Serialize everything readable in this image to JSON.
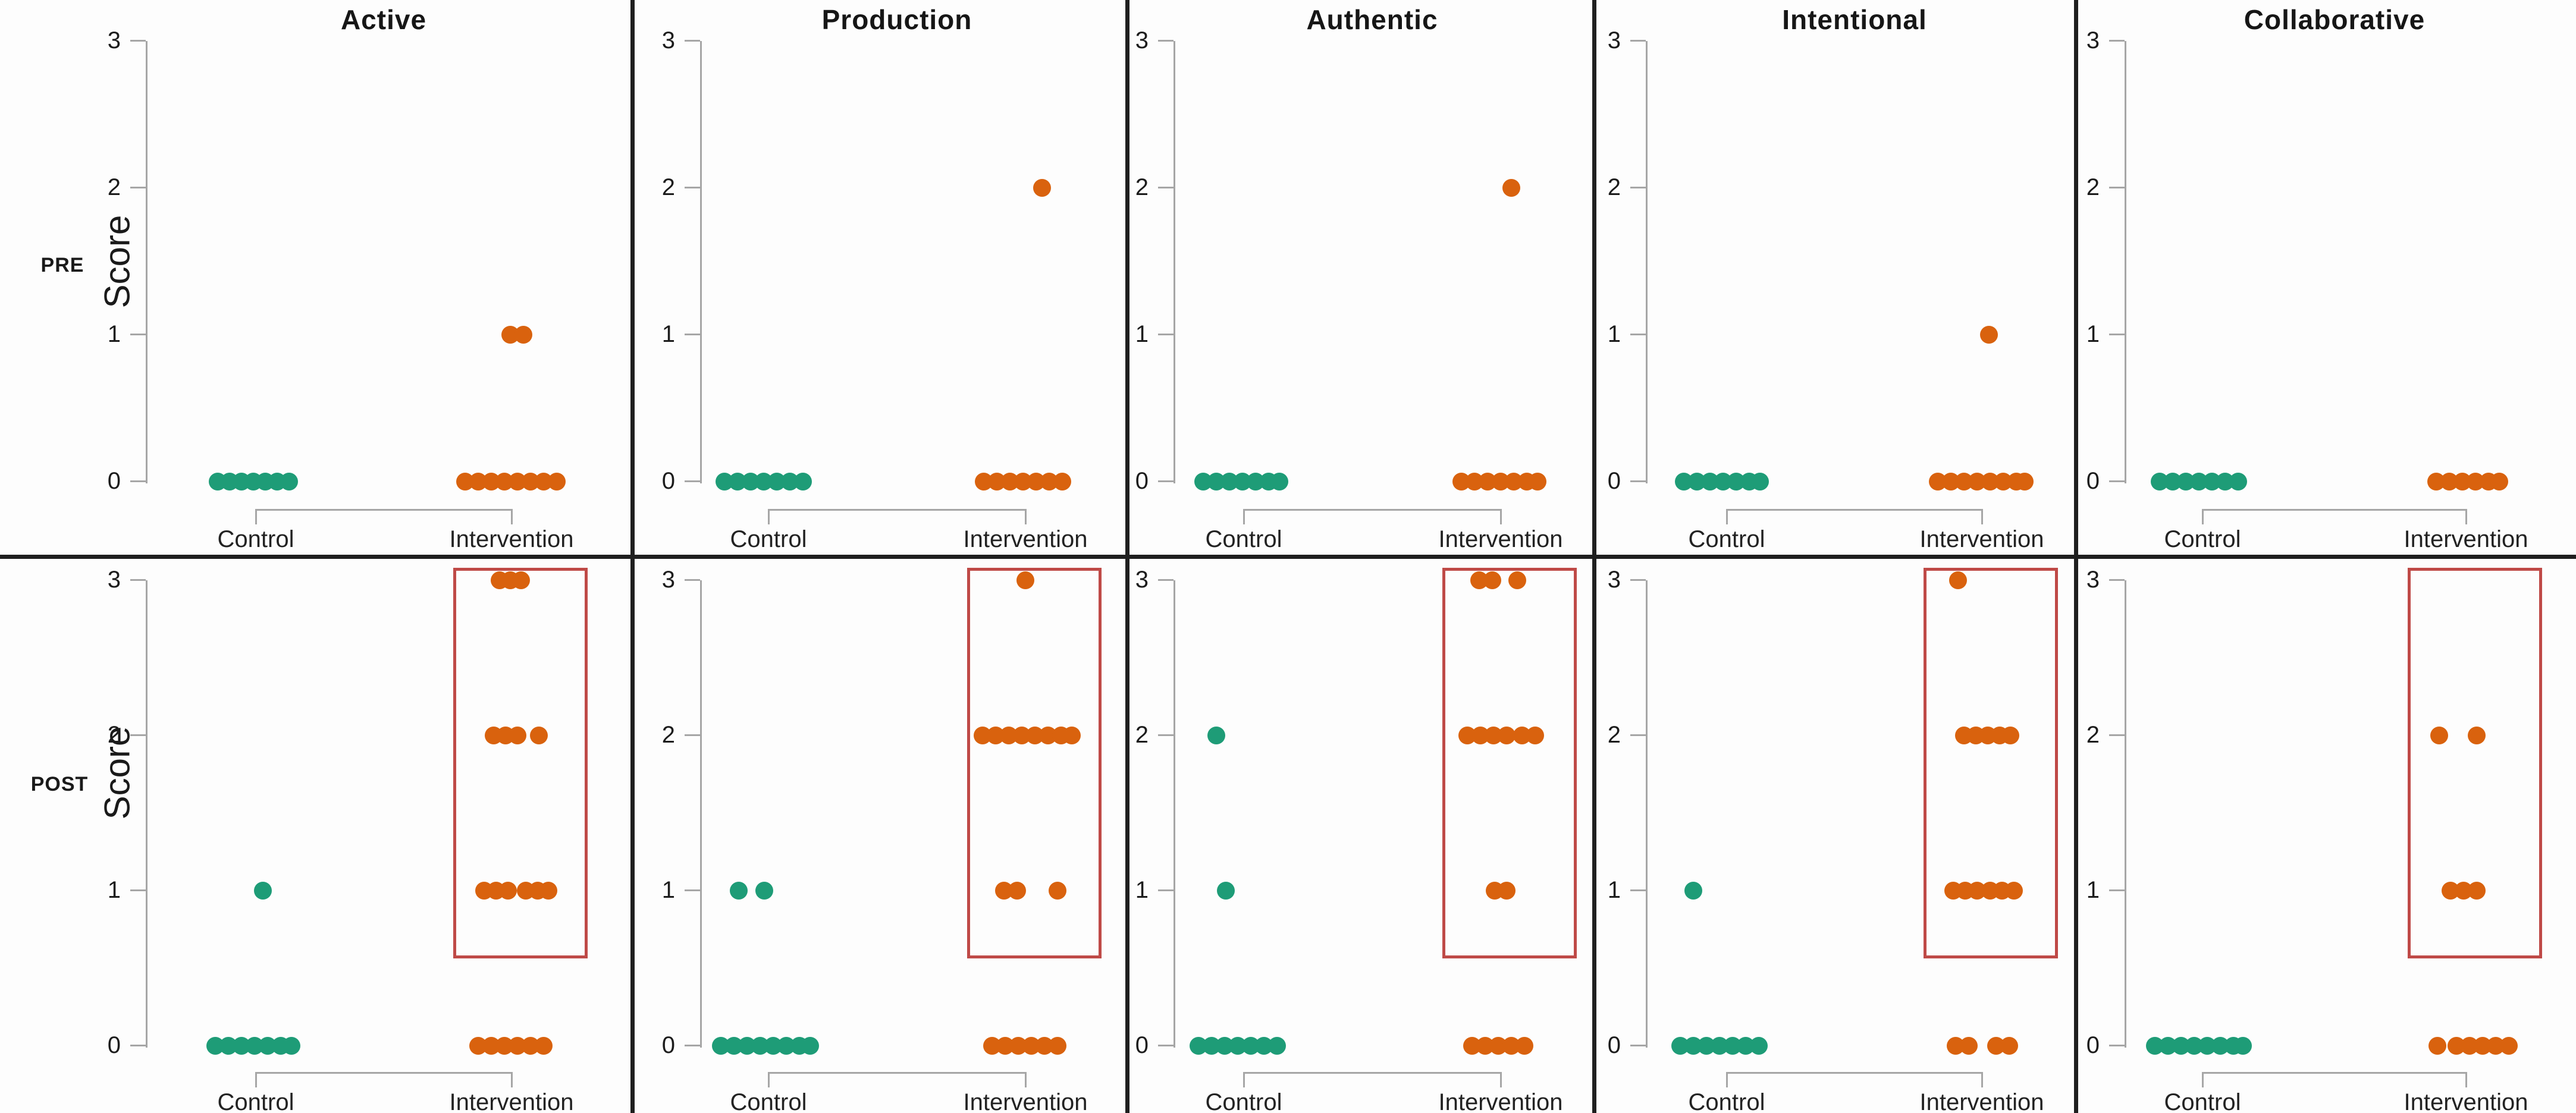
{
  "figure": {
    "row_labels": [
      "PRE",
      "POST"
    ],
    "ylabel": "Score"
  },
  "colors": {
    "control": "#1E9C77",
    "intervention": "#D9620E",
    "highlight_box": "#BF4A47",
    "divider": "#1f1f1f",
    "axis": "#A6A6A6",
    "text": "#1A1A1A"
  },
  "chart_data": {
    "type": "scatter",
    "title": "",
    "ylabel": "Score",
    "ylim": [
      0,
      3
    ],
    "yticks": [
      0,
      1,
      2,
      3
    ],
    "x_categories": [
      "Control",
      "Intervention"
    ],
    "facets": [
      "Active",
      "Production",
      "Authentic",
      "Intentional",
      "Collaborative"
    ],
    "rows": [
      "PRE",
      "POST"
    ],
    "legend": "none",
    "grid": "off",
    "highlight_note": "red rectangle drawn around Intervention scores above 0 in every POST panel",
    "panels": [
      {
        "facet": "Active",
        "phase": "PRE",
        "highlight_box": false,
        "control": [
          {
            "score": 0,
            "offsets": [
              -64,
              -44,
              -24,
              -4,
              16,
              36,
              56
            ]
          }
        ],
        "intervention": [
          {
            "score": 1,
            "offsets": [
              -2,
              20
            ]
          },
          {
            "score": 0,
            "offsets": [
              -78,
              -56,
              -34,
              -12,
              10,
              32,
              54,
              76
            ]
          }
        ]
      },
      {
        "facet": "Production",
        "phase": "PRE",
        "highlight_box": false,
        "control": [
          {
            "score": 0,
            "offsets": [
              -74,
              -52,
              -30,
              -8,
              14,
              36,
              58
            ]
          }
        ],
        "intervention": [
          {
            "score": 2,
            "offsets": [
              28
            ]
          },
          {
            "score": 0,
            "offsets": [
              -70,
              -48,
              -26,
              -4,
              18,
              40,
              62
            ]
          }
        ]
      },
      {
        "facet": "Authentic",
        "phase": "PRE",
        "highlight_box": false,
        "control": [
          {
            "score": 0,
            "offsets": [
              -68,
              -46,
              -24,
              -2,
              20,
              42,
              60
            ]
          }
        ],
        "intervention": [
          {
            "score": 2,
            "offsets": [
              18
            ]
          },
          {
            "score": 0,
            "offsets": [
              -66,
              -44,
              -22,
              0,
              22,
              44,
              62
            ]
          }
        ]
      },
      {
        "facet": "Intentional",
        "phase": "PRE",
        "highlight_box": false,
        "control": [
          {
            "score": 0,
            "offsets": [
              -72,
              -50,
              -28,
              -6,
              16,
              38,
              56
            ]
          }
        ],
        "intervention": [
          {
            "score": 1,
            "offsets": [
              12
            ]
          },
          {
            "score": 0,
            "offsets": [
              -74,
              -52,
              -30,
              -8,
              14,
              36,
              58,
              72
            ]
          }
        ]
      },
      {
        "facet": "Collaborative",
        "phase": "PRE",
        "highlight_box": false,
        "control": [
          {
            "score": 0,
            "offsets": [
              -72,
              -50,
              -28,
              -6,
              16,
              38,
              60
            ]
          }
        ],
        "intervention": [
          {
            "score": 0,
            "offsets": [
              -50,
              -28,
              -6,
              16,
              38,
              56
            ]
          }
        ]
      },
      {
        "facet": "Active",
        "phase": "POST",
        "highlight_box": true,
        "control": [
          {
            "score": 1,
            "offsets": [
              12
            ]
          },
          {
            "score": 0,
            "offsets": [
              -68,
              -46,
              -24,
              -2,
              20,
              42,
              60
            ]
          }
        ],
        "intervention": [
          {
            "score": 3,
            "offsets": [
              -20,
              -2,
              16
            ]
          },
          {
            "score": 2,
            "offsets": [
              -30,
              -10,
              10,
              46
            ]
          },
          {
            "score": 1,
            "offsets": [
              -46,
              -26,
              -6,
              24,
              44,
              62
            ]
          },
          {
            "score": 0,
            "offsets": [
              -56,
              -34,
              -12,
              10,
              32,
              54
            ]
          }
        ]
      },
      {
        "facet": "Production",
        "phase": "POST",
        "highlight_box": true,
        "control": [
          {
            "score": 1,
            "offsets": [
              -50,
              -7
            ]
          },
          {
            "score": 0,
            "offsets": [
              -80,
              -58,
              -36,
              -14,
              8,
              30,
              52,
              70
            ]
          }
        ],
        "intervention": [
          {
            "score": 3,
            "offsets": [
              0
            ]
          },
          {
            "score": 2,
            "offsets": [
              -72,
              -50,
              -28,
              -6,
              16,
              38,
              60,
              78
            ]
          },
          {
            "score": 1,
            "offsets": [
              -36,
              -14,
              54
            ]
          },
          {
            "score": 0,
            "offsets": [
              -56,
              -34,
              -12,
              10,
              32,
              54
            ]
          }
        ]
      },
      {
        "facet": "Authentic",
        "phase": "POST",
        "highlight_box": true,
        "control": [
          {
            "score": 2,
            "offsets": [
              -46
            ]
          },
          {
            "score": 1,
            "offsets": [
              -30
            ]
          },
          {
            "score": 0,
            "offsets": [
              -76,
              -54,
              -32,
              -10,
              12,
              34,
              56
            ]
          }
        ],
        "intervention": [
          {
            "score": 3,
            "offsets": [
              -36,
              -14,
              28
            ]
          },
          {
            "score": 2,
            "offsets": [
              -56,
              -34,
              -12,
              10,
              36,
              58
            ]
          },
          {
            "score": 1,
            "offsets": [
              -10,
              10
            ]
          },
          {
            "score": 0,
            "offsets": [
              -48,
              -26,
              -4,
              18,
              40
            ]
          }
        ]
      },
      {
        "facet": "Intentional",
        "phase": "POST",
        "highlight_box": true,
        "control": [
          {
            "score": 1,
            "offsets": [
              -56
            ]
          },
          {
            "score": 0,
            "offsets": [
              -78,
              -56,
              -34,
              -12,
              10,
              32,
              54
            ]
          }
        ],
        "intervention": [
          {
            "score": 3,
            "offsets": [
              -40
            ]
          },
          {
            "score": 2,
            "offsets": [
              -30,
              -10,
              10,
              30,
              48
            ]
          },
          {
            "score": 1,
            "offsets": [
              -48,
              -28,
              -8,
              14,
              34,
              54
            ]
          },
          {
            "score": 0,
            "offsets": [
              -44,
              -22,
              24,
              46
            ]
          }
        ]
      },
      {
        "facet": "Collaborative",
        "phase": "POST",
        "highlight_box": true,
        "control": [
          {
            "score": 0,
            "offsets": [
              -80,
              -58,
              -36,
              -14,
              8,
              30,
              52,
              68
            ]
          }
        ],
        "intervention": [
          {
            "score": 2,
            "offsets": [
              -45,
              18
            ]
          },
          {
            "score": 1,
            "offsets": [
              -26,
              -4,
              18
            ]
          },
          {
            "score": 0,
            "offsets": [
              -48,
              -16,
              6,
              28,
              50,
              72
            ]
          }
        ]
      }
    ]
  }
}
